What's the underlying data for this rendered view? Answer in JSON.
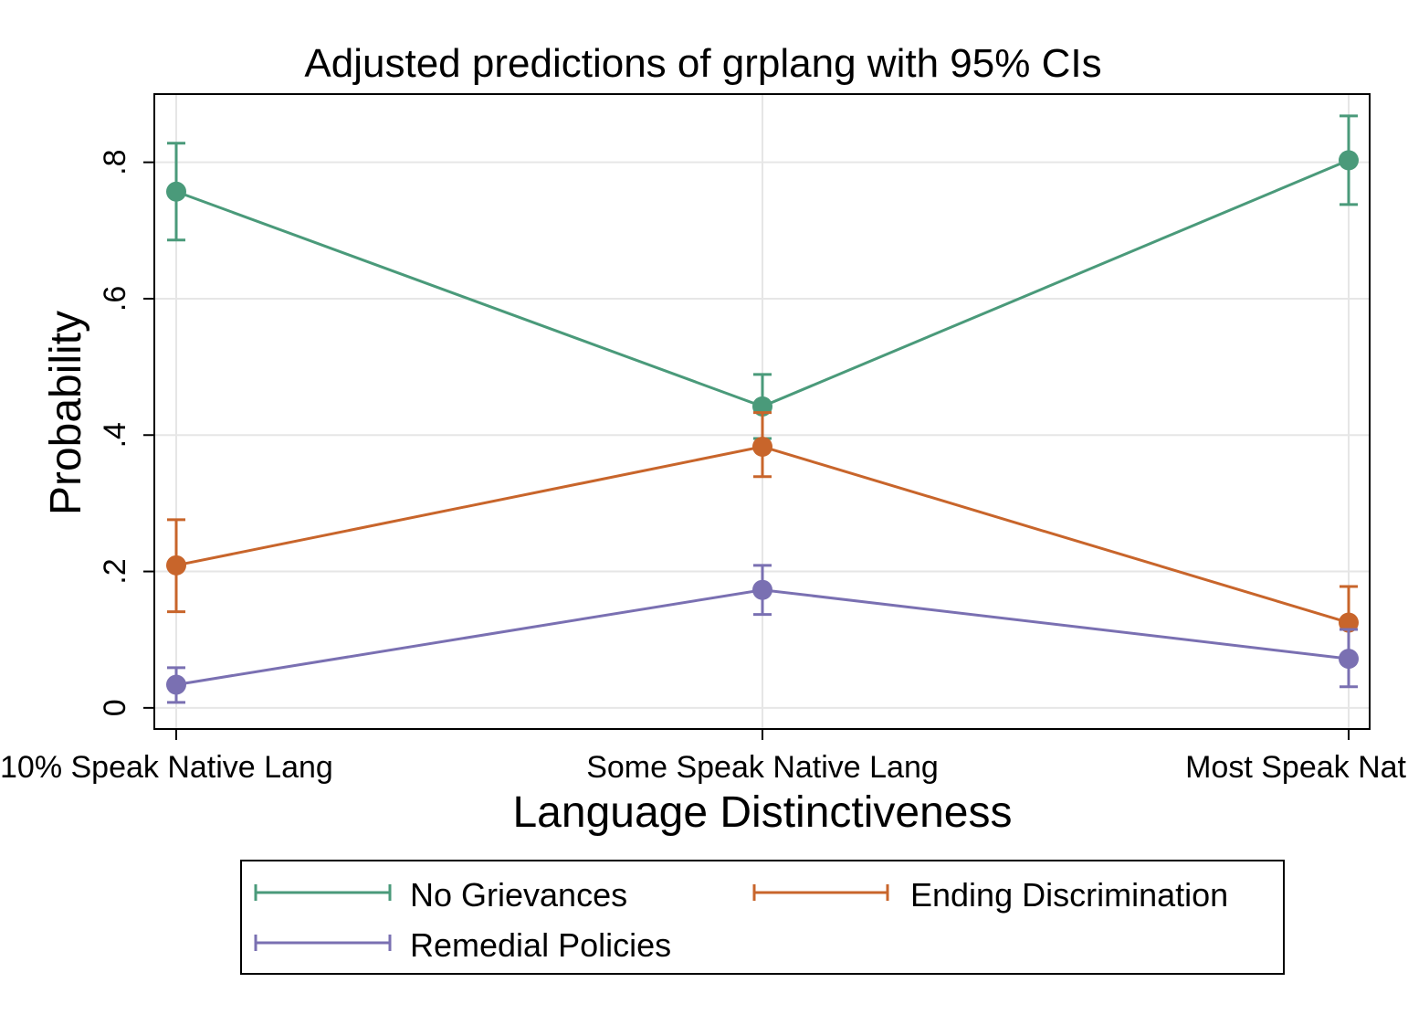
{
  "chart_data": {
    "type": "line",
    "title": "Adjusted predictions of grplang with 95% CIs",
    "x_label": "Language Distinctiveness",
    "y_label": "Probability",
    "categories": [
      "10% Speak Native Lang",
      "Some Speak Native Lang",
      "Most Speak Nat"
    ],
    "ylim": [
      -0.031,
      0.9
    ],
    "yticks": [
      0,
      {
        "value": 0.2,
        "label": ".2"
      },
      {
        "value": 0.4,
        "label": ".4"
      },
      {
        "value": 0.6,
        "label": ".6"
      },
      {
        "value": 0.8,
        "label": ".8"
      }
    ],
    "grid": true,
    "legend_position": "bottom",
    "series": [
      {
        "name": "No Grievances",
        "color": "#4a9a7a",
        "values": [
          0.757,
          0.442,
          0.803
        ],
        "lower": [
          0.686,
          0.395,
          0.738
        ],
        "upper": [
          0.828,
          0.489,
          0.868
        ]
      },
      {
        "name": "Ending Discrimination",
        "color": "#c8652b",
        "values": [
          0.209,
          0.383,
          0.125
        ],
        "lower": [
          0.141,
          0.339,
          0.072
        ],
        "upper": [
          0.276,
          0.433,
          0.178
        ]
      },
      {
        "name": "Remedial Policies",
        "color": "#7a70b2",
        "values": [
          0.034,
          0.173,
          0.072
        ],
        "lower": [
          0.008,
          0.137,
          0.031
        ],
        "upper": [
          0.059,
          0.209,
          0.115
        ]
      }
    ]
  }
}
